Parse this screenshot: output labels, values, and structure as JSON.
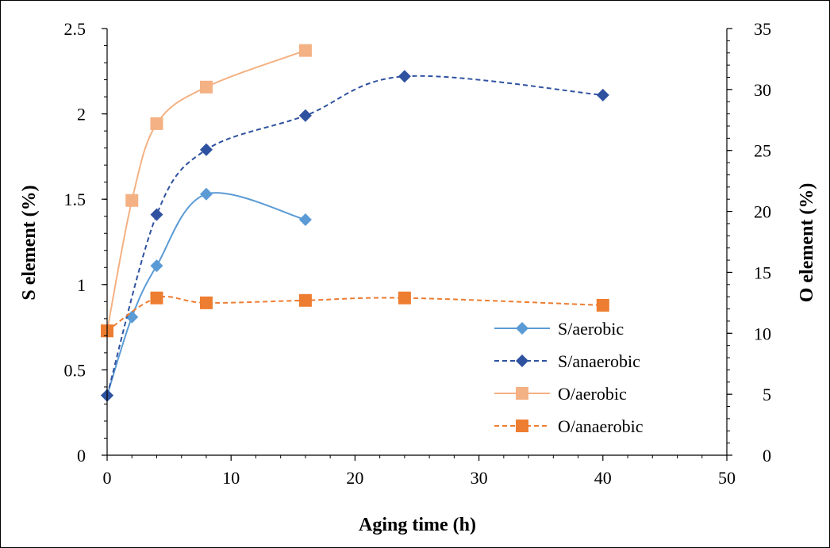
{
  "chart_data": {
    "type": "line",
    "title": "",
    "xlabel": "Aging time (h)",
    "ylabel": "S element (%)",
    "y2label": "O element (%)",
    "xlim": [
      0,
      50
    ],
    "ylim": [
      0,
      2.5
    ],
    "y2lim": [
      0,
      35
    ],
    "x_ticks": [
      "0",
      "10",
      "20",
      "30",
      "40",
      "50"
    ],
    "y_ticks": [
      "0",
      "0.5",
      "1",
      "1.5",
      "2",
      "2.5"
    ],
    "y2_ticks": [
      "0",
      "5",
      "10",
      "15",
      "20",
      "25",
      "30",
      "35"
    ],
    "grid": false,
    "legend_position": "bottom-right",
    "series": [
      {
        "name": "S/aerobic",
        "axis": "left",
        "color": "#5b9bd5",
        "marker": "diamond",
        "dash": "solid",
        "x": [
          0,
          2,
          4,
          8,
          16
        ],
        "y": [
          0.35,
          0.81,
          1.11,
          1.53,
          1.38
        ]
      },
      {
        "name": "S/anaerobic",
        "axis": "left",
        "color": "#2f52a0",
        "marker": "diamond",
        "dash": "dashed",
        "x": [
          0,
          4,
          8,
          16,
          24,
          40
        ],
        "y": [
          0.35,
          1.41,
          1.79,
          1.99,
          2.22,
          2.11
        ]
      },
      {
        "name": "O/aerobic",
        "axis": "right",
        "color": "#f4b183",
        "marker": "square",
        "dash": "solid",
        "x": [
          0,
          2,
          4,
          8,
          16
        ],
        "y": [
          10.2,
          20.9,
          27.2,
          30.2,
          33.2
        ]
      },
      {
        "name": "O/anaerobic",
        "axis": "right",
        "color": "#ed7d31",
        "marker": "square",
        "dash": "dashed",
        "x": [
          0,
          4,
          8,
          16,
          24,
          40
        ],
        "y": [
          10.2,
          12.9,
          12.5,
          12.7,
          12.9,
          12.3
        ]
      }
    ]
  }
}
